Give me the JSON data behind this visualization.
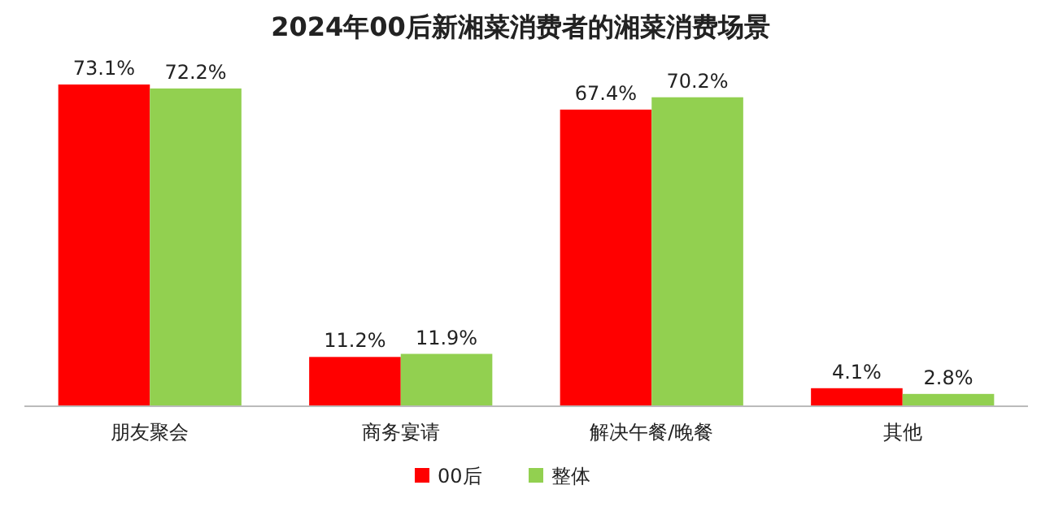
{
  "chart_data": {
    "type": "bar",
    "title": "2024年00后新湘菜消费者的湘菜消费场景",
    "categories": [
      "朋友聚会",
      "商务宴请",
      "解决午餐/晚餐",
      "其他"
    ],
    "series": [
      {
        "name": "00后",
        "color": "#ff0000",
        "values": [
          73.1,
          11.2,
          67.4,
          4.1
        ],
        "value_labels": [
          "73.1%",
          "11.2%",
          "67.4%",
          "4.1%"
        ]
      },
      {
        "name": "整体",
        "color": "#92d050",
        "values": [
          72.2,
          11.9,
          70.2,
          2.8
        ],
        "value_labels": [
          "72.2%",
          "11.9%",
          "70.2%",
          "2.8%"
        ]
      }
    ],
    "legend": "bottom"
  }
}
